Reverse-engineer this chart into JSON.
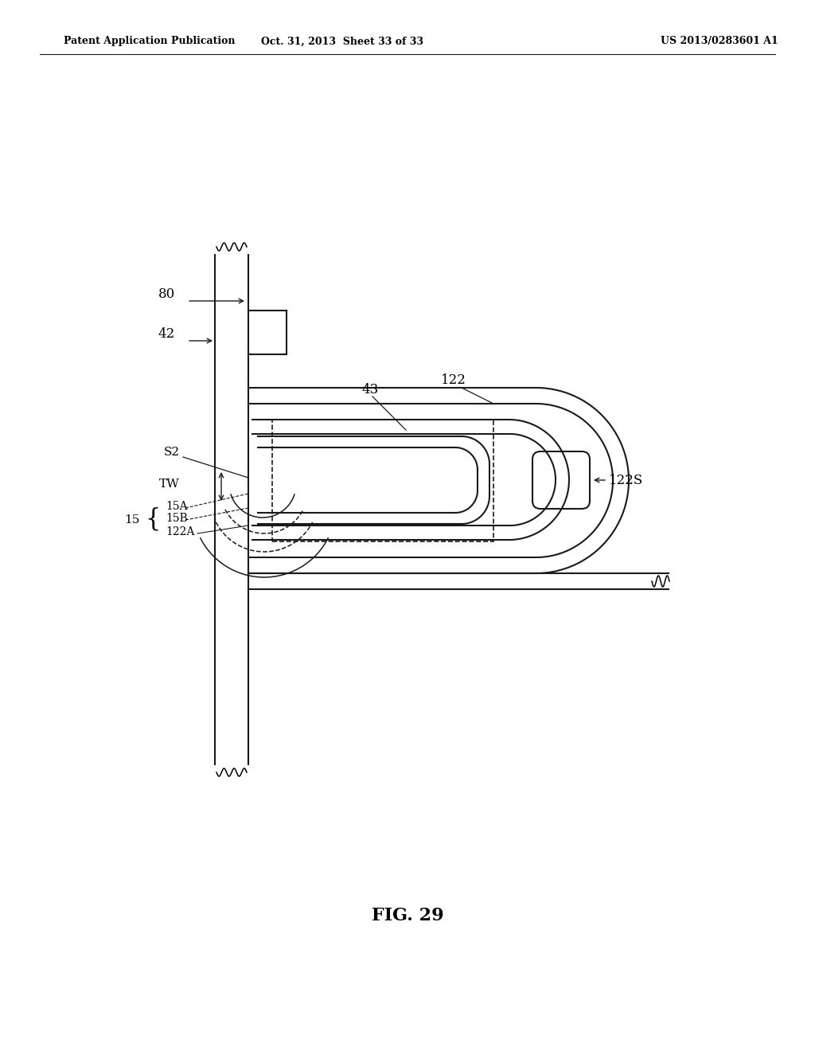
{
  "bg_color": "#ffffff",
  "line_color": "#1a1a1a",
  "fig_label": "FIG. 29",
  "header_left": "Patent Application Publication",
  "header_mid": "Oct. 31, 2013  Sheet 33 of 33",
  "header_right": "US 2013/0283601 A1"
}
